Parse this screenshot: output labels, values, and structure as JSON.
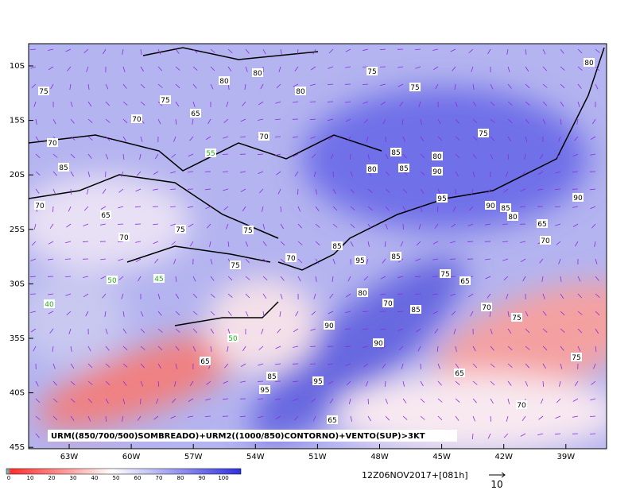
{
  "map": {
    "lat_labels": [
      "10S",
      "15S",
      "20S",
      "25S",
      "30S",
      "35S",
      "40S",
      "45S"
    ],
    "lon_labels": [
      "63W",
      "60W",
      "57W",
      "54W",
      "51W",
      "48W",
      "45W",
      "42W",
      "39W"
    ],
    "caption": "URM((850/700/500)SOMBREADO)+URM2((1000/850)CONTORNO)+VENTO(SUP)>3KT",
    "colorbar_labels": [
      0,
      10,
      20,
      30,
      40,
      50,
      60,
      70,
      80,
      90,
      100
    ],
    "timestamp": "12Z06NOV2017+[081h]",
    "vector_scale": "10",
    "contour_labels": [
      "75",
      "80",
      "80",
      "80",
      "75",
      "75",
      "80",
      "75",
      "70",
      "65",
      "70",
      "75",
      "85",
      "80",
      "90",
      "80",
      "85",
      "95",
      "90",
      "90",
      "85",
      "80",
      "65",
      "70",
      "75",
      "65",
      "70",
      "75",
      "75",
      "65",
      "70",
      "90",
      "95",
      "85",
      "95",
      "85",
      "70",
      "90",
      "80",
      "65",
      "45",
      "50",
      "40",
      "50",
      "65",
      "85",
      "95",
      "85",
      "70",
      "75",
      "70",
      "85",
      "70",
      "65",
      "70",
      "75",
      "75",
      "55"
    ]
  }
}
